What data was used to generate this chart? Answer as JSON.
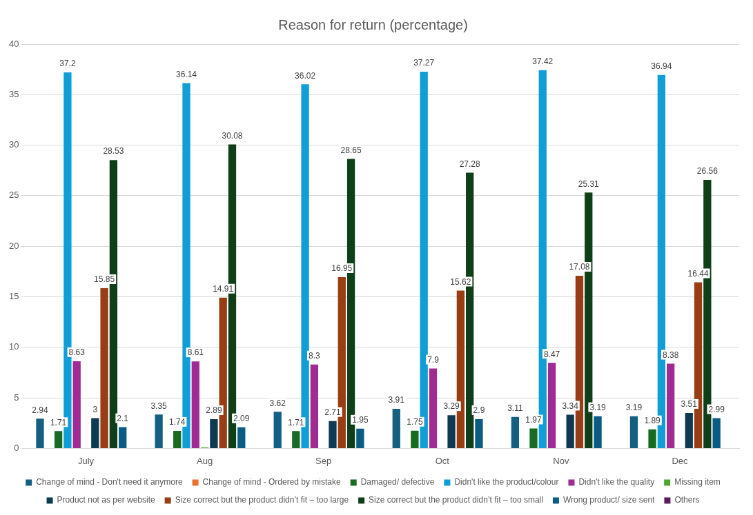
{
  "chart_data": {
    "type": "bar",
    "title": "Reason for return (percentage)",
    "categories": [
      "July",
      "Aug",
      "Sep",
      "Oct",
      "Nov",
      "Dec"
    ],
    "ylim": [
      0,
      40
    ],
    "yticks": [
      0,
      5,
      10,
      15,
      20,
      25,
      30,
      35,
      40
    ],
    "grid": "y",
    "legend": "bottom",
    "series": [
      {
        "name": "Change of mind - Don't need it anymore",
        "color": "#156082",
        "values": [
          2.94,
          3.35,
          3.62,
          3.91,
          3.11,
          3.19
        ],
        "value_labels": [
          "2.94",
          "3.35",
          "3.62",
          "3.91",
          "3.11",
          "3.19"
        ]
      },
      {
        "name": "Change of mind - Ordered by mistake",
        "color": "#e97132",
        "values": [
          null,
          null,
          null,
          null,
          null,
          null
        ]
      },
      {
        "name": "Damaged/ defective",
        "color": "#196b24",
        "values": [
          1.71,
          1.74,
          1.71,
          1.75,
          1.97,
          1.89
        ],
        "value_labels": [
          "1.71",
          "1.74",
          "1.71",
          "1.75",
          "1.97",
          "1.89"
        ]
      },
      {
        "name": "Didn't like the product/colour",
        "color": "#0f9ed5",
        "values": [
          37.2,
          36.14,
          36.02,
          37.27,
          37.42,
          36.94
        ],
        "value_labels": [
          "37.2",
          "36.14",
          "36.02",
          "37.27",
          "37.42",
          "36.94"
        ]
      },
      {
        "name": "Didn't like the quality",
        "color": "#a02b93",
        "values": [
          8.63,
          8.61,
          8.3,
          7.9,
          8.47,
          8.38
        ],
        "value_labels": [
          "8.63",
          "8.61",
          "8.3",
          "7.9",
          "8.47",
          "8.38"
        ]
      },
      {
        "name": "Missing item",
        "color": "#4ea72e",
        "values": [
          null,
          0.1,
          null,
          null,
          null,
          null
        ],
        "value_labels": [
          null,
          null,
          null,
          null,
          null,
          null
        ]
      },
      {
        "name": "Product not as per website",
        "color": "#0e3a52",
        "values": [
          3,
          2.89,
          2.71,
          3.29,
          3.34,
          3.51
        ],
        "value_labels": [
          "3",
          "2.89",
          "2.71",
          "3.29",
          "3.34",
          "3.51"
        ]
      },
      {
        "name": "Size correct but the product didn’t fit – too large",
        "color": "#983d14",
        "values": [
          15.85,
          14.91,
          16.95,
          15.62,
          17.08,
          16.44
        ],
        "value_labels": [
          "15.85",
          "14.91",
          "16.95",
          "15.62",
          "17.08",
          "16.44"
        ]
      },
      {
        "name": "Size correct but the product didn’t fit – too small",
        "color": "#0f3f18",
        "values": [
          28.53,
          30.08,
          28.65,
          27.28,
          25.31,
          26.56
        ],
        "value_labels": [
          "28.53",
          "30.08",
          "28.65",
          "27.28",
          "25.31",
          "26.56"
        ]
      },
      {
        "name": "Wrong product/ size sent",
        "color": "#0b5c82",
        "values": [
          2.1,
          2.09,
          1.95,
          2.9,
          3.19,
          2.99
        ],
        "value_labels": [
          "2.1",
          "2.09",
          "1.95",
          "2.9",
          "3.19",
          "2.99"
        ]
      },
      {
        "name": "Others",
        "color": "#5d1a5e",
        "values": [
          null,
          null,
          null,
          null,
          null,
          null
        ]
      }
    ]
  }
}
